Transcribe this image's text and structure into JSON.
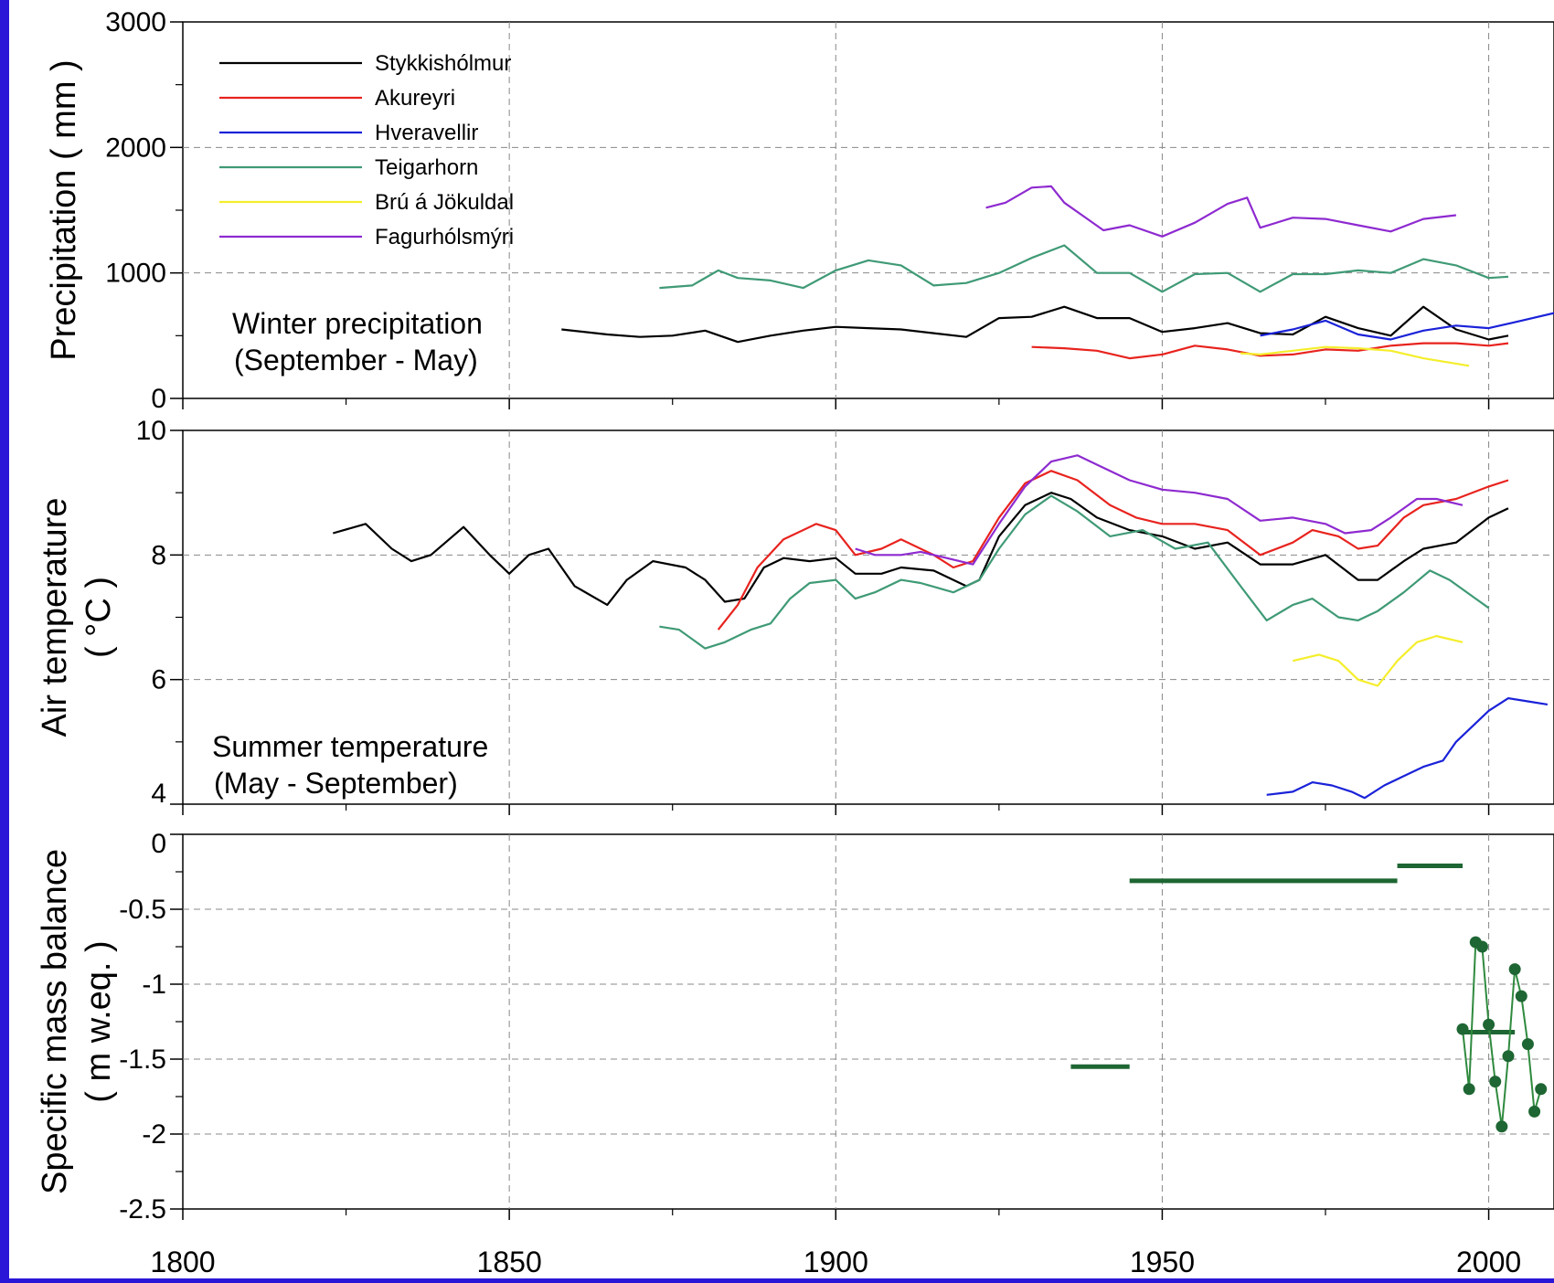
{
  "chart_data": [
    {
      "type": "line",
      "ylabel": "Precipitation ( mm )",
      "ylim": [
        0,
        3000
      ],
      "xlim": [
        1800,
        2010
      ],
      "yticks": [
        "0",
        "1000",
        "2000",
        "3000"
      ],
      "annotation": [
        "Winter precipitation",
        "(September - May)"
      ],
      "grid": true,
      "legend_position": "top-left",
      "series": [
        {
          "name": "Stykkishólmur",
          "color": "#000000",
          "x": [
            1858,
            1865,
            1870,
            1875,
            1880,
            1885,
            1890,
            1895,
            1900,
            1905,
            1910,
            1915,
            1920,
            1925,
            1930,
            1935,
            1940,
            1945,
            1950,
            1955,
            1960,
            1965,
            1970,
            1975,
            1980,
            1985,
            1990,
            1995,
            2000,
            2003
          ],
          "y": [
            550,
            510,
            490,
            500,
            540,
            450,
            500,
            540,
            570,
            560,
            550,
            520,
            490,
            640,
            650,
            730,
            640,
            640,
            530,
            560,
            600,
            520,
            510,
            650,
            560,
            500,
            730,
            550,
            470,
            500
          ]
        },
        {
          "name": "Akureyri",
          "color": "#e8231e",
          "x": [
            1930,
            1935,
            1940,
            1945,
            1950,
            1955,
            1960,
            1965,
            1970,
            1975,
            1980,
            1985,
            1990,
            1995,
            2000,
            2003
          ],
          "y": [
            410,
            400,
            380,
            320,
            350,
            420,
            390,
            340,
            350,
            390,
            380,
            420,
            440,
            440,
            420,
            440
          ]
        },
        {
          "name": "Hveravellir",
          "color": "#1a22d8",
          "x": [
            1965,
            1970,
            1975,
            1980,
            1985,
            1990,
            1995,
            2000,
            2005,
            2010
          ],
          "y": [
            500,
            550,
            620,
            510,
            470,
            540,
            580,
            560,
            620,
            680
          ]
        },
        {
          "name": "Teigarhorn",
          "color": "#3f9a76",
          "x": [
            1873,
            1878,
            1882,
            1885,
            1890,
            1895,
            1900,
            1905,
            1910,
            1915,
            1920,
            1925,
            1930,
            1935,
            1940,
            1945,
            1950,
            1955,
            1960,
            1965,
            1970,
            1975,
            1980,
            1985,
            1990,
            1995,
            2000,
            2003
          ],
          "y": [
            880,
            900,
            1020,
            960,
            940,
            880,
            1020,
            1100,
            1060,
            900,
            920,
            1000,
            1120,
            1220,
            1000,
            1000,
            850,
            990,
            1000,
            850,
            990,
            990,
            1020,
            1000,
            1110,
            1060,
            960,
            970
          ]
        },
        {
          "name": "Brú á Jökuldal",
          "color": "#f4ee2c",
          "x": [
            1962,
            1965,
            1970,
            1975,
            1980,
            1985,
            1990,
            1997
          ],
          "y": [
            360,
            350,
            380,
            410,
            400,
            380,
            320,
            260
          ]
        },
        {
          "name": "Fagurhólsmýri",
          "color": "#8e2ad0",
          "x": [
            1923,
            1926,
            1930,
            1933,
            1935,
            1938,
            1941,
            1945,
            1950,
            1955,
            1960,
            1963,
            1965,
            1970,
            1975,
            1980,
            1985,
            1990,
            1995
          ],
          "y": [
            1520,
            1560,
            1680,
            1690,
            1560,
            1450,
            1340,
            1380,
            1290,
            1400,
            1550,
            1600,
            1360,
            1440,
            1430,
            1380,
            1330,
            1430,
            1460
          ]
        }
      ]
    },
    {
      "type": "line",
      "ylabel": "Air temperature",
      "ylabel2": "( °C )",
      "ylim": [
        4,
        10
      ],
      "xlim": [
        1800,
        2010
      ],
      "yticks": [
        "4",
        "6",
        "8",
        "10"
      ],
      "annotation": [
        "Summer temperature",
        "(May - September)"
      ],
      "grid": true,
      "series": [
        {
          "name": "Stykkishólmur",
          "color": "#000000",
          "x": [
            1823,
            1828,
            1832,
            1835,
            1838,
            1843,
            1847,
            1850,
            1853,
            1856,
            1860,
            1865,
            1868,
            1872,
            1877,
            1880,
            1883,
            1886,
            1889,
            1892,
            1896,
            1900,
            1903,
            1907,
            1910,
            1915,
            1920,
            1922,
            1925,
            1929,
            1933,
            1936,
            1940,
            1945,
            1950,
            1955,
            1960,
            1965,
            1970,
            1975,
            1980,
            1983,
            1987,
            1990,
            1995,
            2000,
            2003
          ],
          "y": [
            8.35,
            8.5,
            8.1,
            7.9,
            8.0,
            8.45,
            8.0,
            7.7,
            8.0,
            8.1,
            7.5,
            7.2,
            7.6,
            7.9,
            7.8,
            7.6,
            7.25,
            7.3,
            7.8,
            7.95,
            7.9,
            7.95,
            7.7,
            7.7,
            7.8,
            7.75,
            7.5,
            7.6,
            8.3,
            8.8,
            9.0,
            8.9,
            8.6,
            8.4,
            8.3,
            8.1,
            8.2,
            7.85,
            7.85,
            8.0,
            7.6,
            7.6,
            7.9,
            8.1,
            8.2,
            8.6,
            8.75
          ]
        },
        {
          "name": "Akureyri",
          "color": "#e8231e",
          "x": [
            1882,
            1885,
            1888,
            1892,
            1897,
            1900,
            1903,
            1907,
            1910,
            1915,
            1918,
            1921,
            1925,
            1929,
            1933,
            1937,
            1942,
            1946,
            1950,
            1955,
            1960,
            1965,
            1970,
            1973,
            1977,
            1980,
            1983,
            1987,
            1990,
            1995,
            2000,
            2003
          ],
          "y": [
            6.8,
            7.2,
            7.8,
            8.25,
            8.5,
            8.4,
            8.0,
            8.1,
            8.25,
            8.0,
            7.8,
            7.9,
            8.6,
            9.15,
            9.35,
            9.2,
            8.8,
            8.6,
            8.5,
            8.5,
            8.4,
            8.0,
            8.2,
            8.4,
            8.3,
            8.1,
            8.15,
            8.6,
            8.8,
            8.9,
            9.1,
            9.2
          ]
        },
        {
          "name": "Hveravellir",
          "color": "#1a22d8",
          "x": [
            1966,
            1970,
            1973,
            1976,
            1979,
            1981,
            1984,
            1987,
            1990,
            1993,
            1995,
            1998,
            2000,
            2003,
            2006,
            2009
          ],
          "y": [
            4.15,
            4.2,
            4.35,
            4.3,
            4.2,
            4.1,
            4.3,
            4.45,
            4.6,
            4.7,
            5.0,
            5.3,
            5.5,
            5.7,
            5.65,
            5.6
          ]
        },
        {
          "name": "Teigarhorn",
          "color": "#3f9a76",
          "x": [
            1873,
            1876,
            1880,
            1883,
            1887,
            1890,
            1893,
            1896,
            1900,
            1903,
            1906,
            1910,
            1913,
            1918,
            1922,
            1925,
            1929,
            1933,
            1937,
            1942,
            1947,
            1952,
            1957,
            1962,
            1966,
            1970,
            1973,
            1977,
            1980,
            1983,
            1987,
            1991,
            1994,
            1998,
            2000
          ],
          "y": [
            6.85,
            6.8,
            6.5,
            6.6,
            6.8,
            6.9,
            7.3,
            7.55,
            7.6,
            7.3,
            7.4,
            7.6,
            7.55,
            7.4,
            7.6,
            8.1,
            8.65,
            8.95,
            8.7,
            8.3,
            8.4,
            8.1,
            8.2,
            7.5,
            6.95,
            7.2,
            7.3,
            7.0,
            6.95,
            7.1,
            7.4,
            7.75,
            7.6,
            7.3,
            7.15
          ]
        },
        {
          "name": "Brú á Jökuldal",
          "color": "#f4ee2c",
          "x": [
            1970,
            1974,
            1977,
            1980,
            1983,
            1986,
            1989,
            1992,
            1996
          ],
          "y": [
            6.3,
            6.4,
            6.3,
            6.0,
            5.9,
            6.3,
            6.6,
            6.7,
            6.6
          ]
        },
        {
          "name": "Fagurhólsmýri",
          "color": "#8e2ad0",
          "x": [
            1903,
            1906,
            1910,
            1913,
            1917,
            1921,
            1925,
            1929,
            1933,
            1937,
            1941,
            1945,
            1950,
            1955,
            1960,
            1965,
            1970,
            1975,
            1978,
            1982,
            1985,
            1989,
            1992,
            1996
          ],
          "y": [
            8.1,
            8.0,
            8.0,
            8.05,
            7.95,
            7.85,
            8.5,
            9.1,
            9.5,
            9.6,
            9.4,
            9.2,
            9.05,
            9.0,
            8.9,
            8.55,
            8.6,
            8.5,
            8.35,
            8.4,
            8.6,
            8.9,
            8.9,
            8.8
          ]
        }
      ]
    },
    {
      "type": "line",
      "ylabel": "Specific mass balance",
      "ylabel2": "( m w.eq. )",
      "ylim": [
        -2.5,
        0
      ],
      "xlim": [
        1800,
        2010
      ],
      "yticks": [
        "-2.5",
        "-2",
        "-1.5",
        "-1",
        "-0.5",
        "0"
      ],
      "xticks": [
        "1800",
        "1850",
        "1900",
        "1950",
        "2000"
      ],
      "grid": true,
      "color": "#1e6633",
      "period_means": [
        {
          "x0": 1936,
          "x1": 1945,
          "y": -1.55
        },
        {
          "x0": 1945,
          "x1": 1986,
          "y": -0.31
        },
        {
          "x0": 1986,
          "x1": 1996,
          "y": -0.21
        },
        {
          "x0": 1996,
          "x1": 2004,
          "y": -1.32
        }
      ],
      "annual": {
        "x": [
          1996,
          1997,
          1998,
          1999,
          2000,
          2001,
          2002,
          2003,
          2004,
          2005,
          2006,
          2007,
          2008
        ],
        "y": [
          -1.3,
          -1.7,
          -0.72,
          -0.75,
          -1.27,
          -1.65,
          -1.95,
          -1.48,
          -0.9,
          -1.08,
          -1.4,
          -1.85,
          -1.7
        ]
      }
    }
  ]
}
